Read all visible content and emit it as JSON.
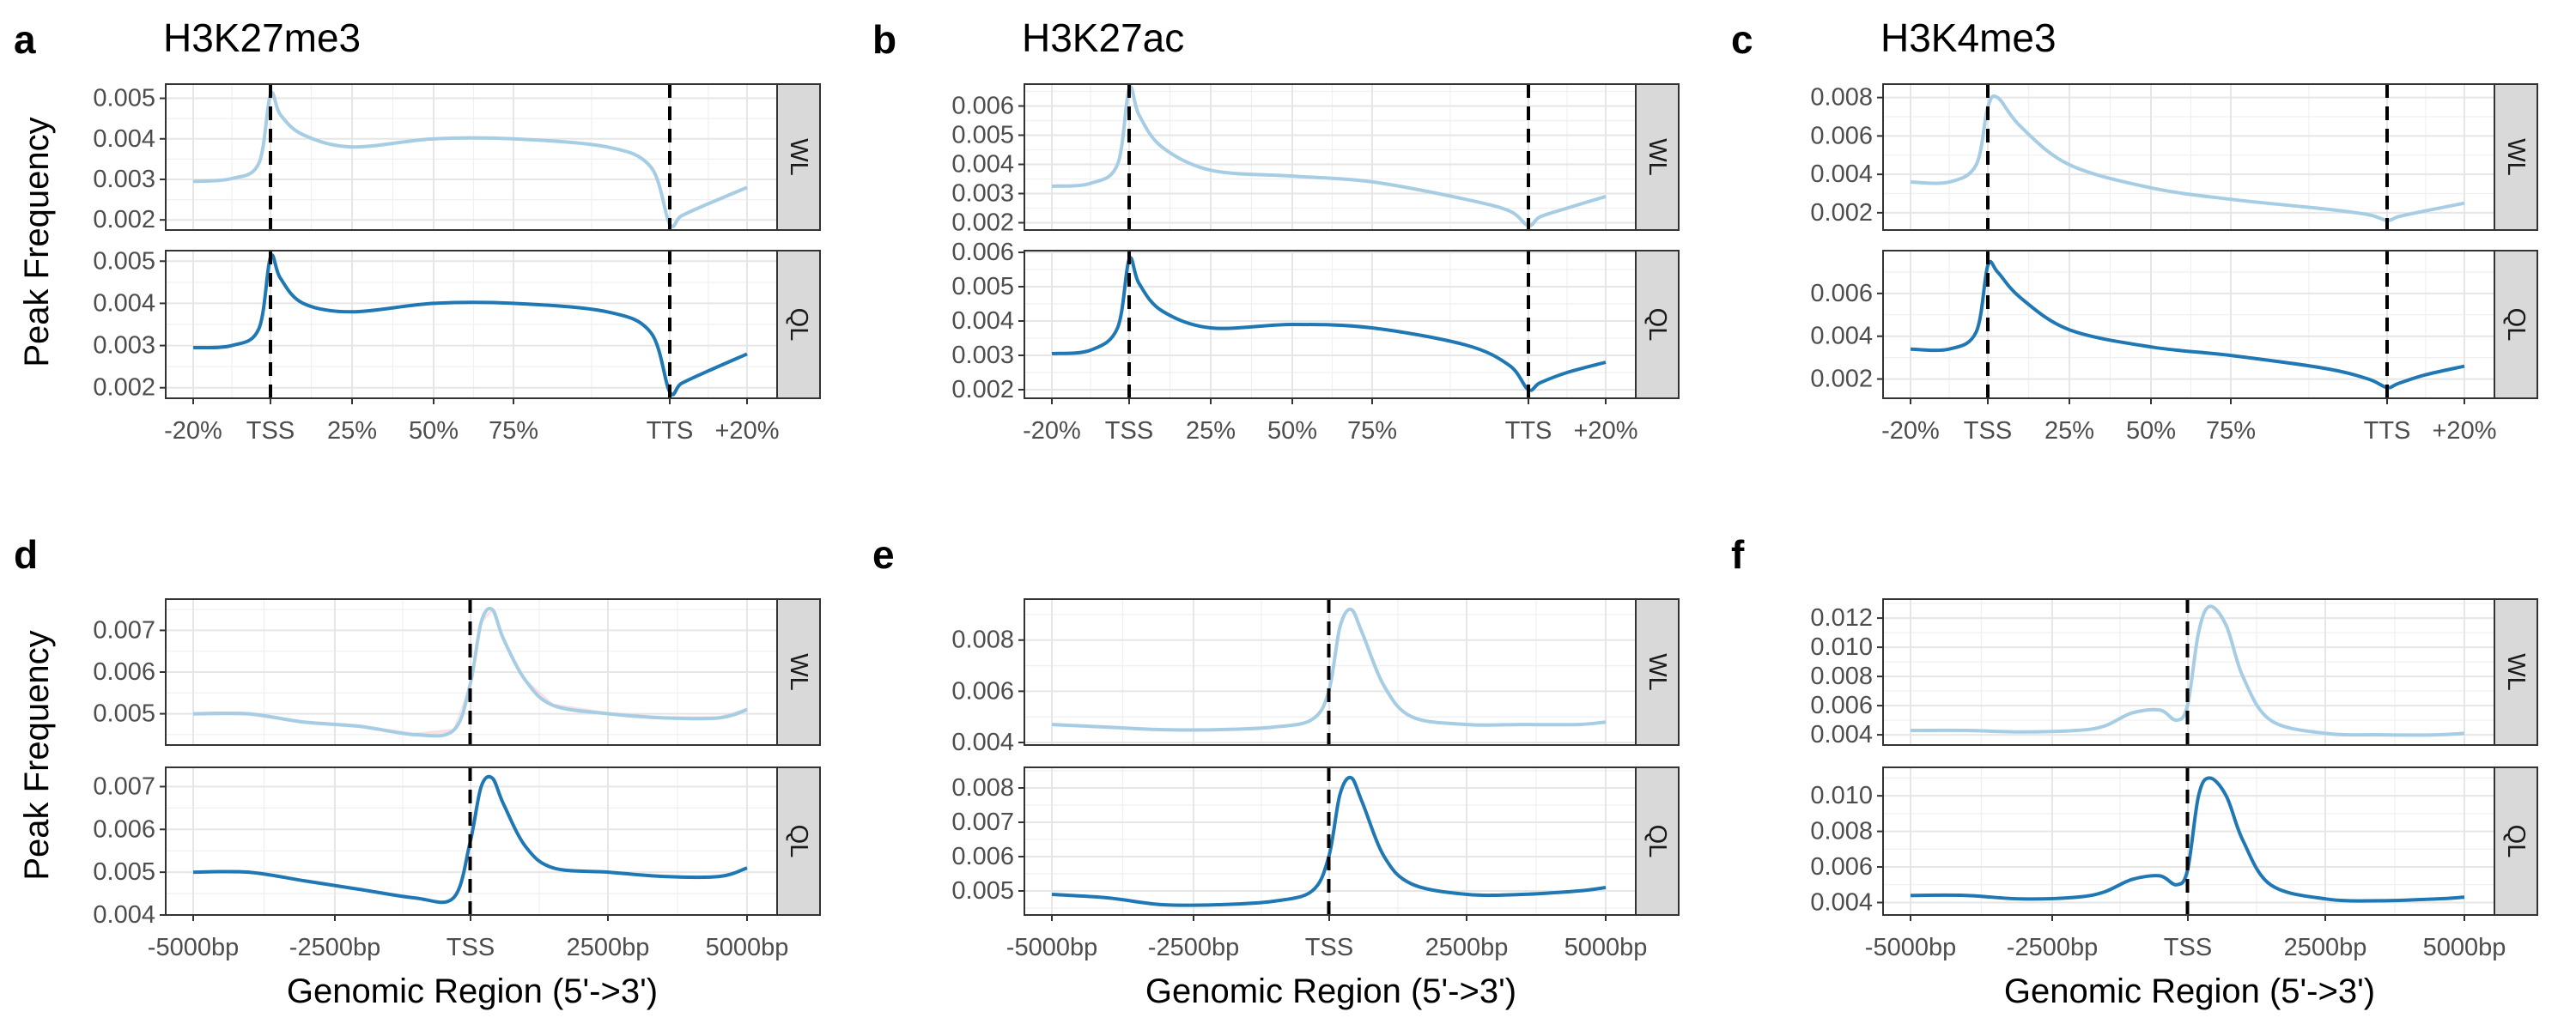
{
  "figure": {
    "panels_row1": [
      "a",
      "b",
      "c"
    ],
    "panels_row2": [
      "d",
      "e",
      "f"
    ],
    "titles_row1": [
      "H3K27me3",
      "H3K27ac",
      "H3K4me3"
    ],
    "ylabel": "Peak Frequency",
    "xlabel_row2": "Genomic Region (5'->3')"
  },
  "colors": {
    "WL": "#a6cde3",
    "QL": "#1f78b4",
    "ribbon": "#f4c6cc"
  },
  "chart_data": [
    {
      "panel": "a",
      "title": "H3K27me3",
      "type": "line",
      "x_ticks": [
        "-20%",
        "TSS",
        "25%",
        "50%",
        "75%",
        "TTS",
        "+20%"
      ],
      "vlines": [
        "TSS",
        "TTS"
      ],
      "facets": [
        {
          "label": "WL",
          "y_ticks": [
            "0.002",
            "0.003",
            "0.004",
            "0.005"
          ],
          "ylim": [
            0.00175,
            0.00535
          ],
          "x": [
            -20,
            -10,
            -3,
            0,
            3,
            10,
            25,
            50,
            75,
            90,
            97,
            100,
            103,
            110,
            120
          ],
          "y": [
            0.00295,
            0.00302,
            0.0034,
            0.0051,
            0.0046,
            0.0041,
            0.0038,
            0.004,
            0.004,
            0.0038,
            0.0033,
            0.0019,
            0.0021,
            0.0024,
            0.0028
          ]
        },
        {
          "label": "QL",
          "y_ticks": [
            "0.002",
            "0.003",
            "0.004",
            "0.005"
          ],
          "ylim": [
            0.00175,
            0.00525
          ],
          "x": [
            -20,
            -10,
            -3,
            0,
            3,
            10,
            25,
            50,
            75,
            90,
            97,
            100,
            103,
            110,
            120
          ],
          "y": [
            0.00295,
            0.003,
            0.0034,
            0.0051,
            0.0046,
            0.004,
            0.0038,
            0.004,
            0.004,
            0.0038,
            0.0033,
            0.0019,
            0.0021,
            0.0024,
            0.0028
          ]
        }
      ]
    },
    {
      "panel": "b",
      "title": "H3K27ac",
      "type": "line",
      "x_ticks": [
        "-20%",
        "TSS",
        "25%",
        "50%",
        "75%",
        "TTS",
        "+20%"
      ],
      "vlines": [
        "TSS",
        "TTS"
      ],
      "facets": [
        {
          "label": "WL",
          "y_ticks": [
            "0.002",
            "0.003",
            "0.004",
            "0.005",
            "0.006"
          ],
          "ylim": [
            0.00175,
            0.00675
          ],
          "x": [
            -20,
            -10,
            -3,
            0,
            3,
            10,
            25,
            50,
            75,
            90,
            97,
            100,
            103,
            110,
            120
          ],
          "y": [
            0.00325,
            0.00335,
            0.004,
            0.0066,
            0.0057,
            0.0046,
            0.0038,
            0.0036,
            0.0034,
            0.0028,
            0.0024,
            0.0019,
            0.0022,
            0.0025,
            0.0029
          ]
        },
        {
          "label": "QL",
          "y_ticks": [
            "0.002",
            "0.003",
            "0.004",
            "0.005",
            "0.006"
          ],
          "ylim": [
            0.00175,
            0.00605
          ],
          "x": [
            -20,
            -10,
            -3,
            0,
            3,
            10,
            25,
            50,
            75,
            90,
            97,
            100,
            103,
            110,
            120
          ],
          "y": [
            0.00305,
            0.00315,
            0.0038,
            0.0058,
            0.0051,
            0.0043,
            0.0038,
            0.0039,
            0.0038,
            0.0033,
            0.0027,
            0.002,
            0.0022,
            0.0025,
            0.0028
          ]
        }
      ]
    },
    {
      "panel": "c",
      "title": "H3K4me3",
      "type": "line",
      "x_ticks": [
        "-20%",
        "TSS",
        "25%",
        "50%",
        "75%",
        "TTS",
        "+20%"
      ],
      "vlines": [
        "TSS",
        "TTS"
      ],
      "facets": [
        {
          "label": "WL",
          "y_ticks": [
            "0.002",
            "0.004",
            "0.006",
            "0.008"
          ],
          "ylim": [
            0.0011,
            0.0087
          ],
          "x": [
            -20,
            -10,
            -3,
            0,
            3,
            10,
            25,
            50,
            75,
            90,
            97,
            100,
            103,
            110,
            120
          ],
          "y": [
            0.0036,
            0.0036,
            0.0045,
            0.0075,
            0.008,
            0.0065,
            0.0045,
            0.0033,
            0.0027,
            0.0022,
            0.0019,
            0.0016,
            0.0018,
            0.0021,
            0.0025
          ]
        },
        {
          "label": "QL",
          "y_ticks": [
            "0.002",
            "0.004",
            "0.006"
          ],
          "ylim": [
            0.0011,
            0.008
          ],
          "x": [
            -20,
            -10,
            -3,
            0,
            3,
            10,
            25,
            50,
            75,
            90,
            97,
            100,
            103,
            110,
            120
          ],
          "y": [
            0.0034,
            0.0034,
            0.0042,
            0.0073,
            0.007,
            0.0058,
            0.0043,
            0.0035,
            0.0031,
            0.0025,
            0.002,
            0.0016,
            0.0018,
            0.0022,
            0.0026
          ]
        }
      ]
    },
    {
      "panel": "d",
      "type": "line",
      "xlabel": "Genomic Region (5'->3')",
      "x_ticks": [
        "-5000bp",
        "-2500bp",
        "TSS",
        "2500bp",
        "5000bp"
      ],
      "vlines": [
        "TSS"
      ],
      "facets": [
        {
          "label": "WL",
          "y_ticks": [
            "0.005",
            "0.006",
            "0.007"
          ],
          "ylim": [
            0.00425,
            0.00775
          ],
          "ribbon": true,
          "x": [
            -5000,
            -4000,
            -3000,
            -2000,
            -1000,
            -300,
            0,
            200,
            400,
            600,
            1000,
            1500,
            2500,
            3500,
            4500,
            5000
          ],
          "y": [
            0.005,
            0.005,
            0.0048,
            0.0047,
            0.0045,
            0.0046,
            0.0057,
            0.0072,
            0.0075,
            0.0068,
            0.0058,
            0.0052,
            0.005,
            0.0049,
            0.0049,
            0.0051
          ]
        },
        {
          "label": "QL",
          "y_ticks": [
            "0.004",
            "0.005",
            "0.006",
            "0.007"
          ],
          "ylim": [
            0.004,
            0.00745
          ],
          "x": [
            -5000,
            -4000,
            -3000,
            -2000,
            -1000,
            -300,
            0,
            200,
            400,
            600,
            1000,
            1500,
            2500,
            3500,
            4500,
            5000
          ],
          "y": [
            0.005,
            0.005,
            0.0048,
            0.0046,
            0.0044,
            0.0044,
            0.0057,
            0.007,
            0.0072,
            0.0066,
            0.0056,
            0.0051,
            0.005,
            0.0049,
            0.0049,
            0.0051
          ]
        }
      ]
    },
    {
      "panel": "e",
      "type": "line",
      "xlabel": "Genomic Region (5'->3')",
      "x_ticks": [
        "-5000bp",
        "-2500bp",
        "TSS",
        "2500bp",
        "5000bp"
      ],
      "vlines": [
        "TSS"
      ],
      "facets": [
        {
          "label": "WL",
          "y_ticks": [
            "0.004",
            "0.006",
            "0.008"
          ],
          "ylim": [
            0.0039,
            0.0096
          ],
          "x": [
            -5000,
            -4000,
            -3000,
            -2000,
            -1000,
            -300,
            0,
            200,
            400,
            600,
            1000,
            1500,
            2500,
            3500,
            4500,
            5000
          ],
          "y": [
            0.0047,
            0.0046,
            0.0045,
            0.0045,
            0.0046,
            0.0049,
            0.006,
            0.0085,
            0.0092,
            0.0083,
            0.0062,
            0.005,
            0.0047,
            0.0047,
            0.0047,
            0.0048
          ]
        },
        {
          "label": "QL",
          "y_ticks": [
            "0.005",
            "0.006",
            "0.007",
            "0.008"
          ],
          "ylim": [
            0.0043,
            0.0086
          ],
          "x": [
            -5000,
            -4000,
            -3000,
            -2000,
            -1000,
            -300,
            0,
            200,
            400,
            600,
            1000,
            1500,
            2500,
            3500,
            4500,
            5000
          ],
          "y": [
            0.0049,
            0.0048,
            0.0046,
            0.0046,
            0.0047,
            0.005,
            0.006,
            0.0078,
            0.0083,
            0.0076,
            0.006,
            0.0052,
            0.0049,
            0.0049,
            0.005,
            0.0051
          ]
        }
      ]
    },
    {
      "panel": "f",
      "type": "line",
      "xlabel": "Genomic Region (5'->3')",
      "x_ticks": [
        "-5000bp",
        "-2500bp",
        "TSS",
        "2500bp",
        "5000bp"
      ],
      "vlines": [
        "TSS"
      ],
      "facets": [
        {
          "label": "WL",
          "y_ticks": [
            "0.004",
            "0.006",
            "0.008",
            "0.010",
            "0.012"
          ],
          "ylim": [
            0.0033,
            0.0133
          ],
          "x": [
            -5000,
            -4000,
            -3000,
            -2000,
            -1500,
            -1000,
            -500,
            -200,
            0,
            200,
            400,
            700,
            1000,
            1500,
            2500,
            3500,
            4500,
            5000
          ],
          "y": [
            0.0043,
            0.0043,
            0.0042,
            0.0043,
            0.0046,
            0.0055,
            0.0057,
            0.005,
            0.006,
            0.011,
            0.0128,
            0.0115,
            0.008,
            0.005,
            0.0041,
            0.004,
            0.004,
            0.0041
          ]
        },
        {
          "label": "QL",
          "y_ticks": [
            "0.004",
            "0.006",
            "0.008",
            "0.010"
          ],
          "ylim": [
            0.0033,
            0.0116
          ],
          "x": [
            -5000,
            -4000,
            -3000,
            -2000,
            -1500,
            -1000,
            -500,
            -200,
            0,
            200,
            400,
            700,
            1000,
            1500,
            2500,
            3500,
            4500,
            5000
          ],
          "y": [
            0.0044,
            0.0044,
            0.0042,
            0.0043,
            0.0046,
            0.0053,
            0.0055,
            0.005,
            0.0058,
            0.01,
            0.011,
            0.01,
            0.0075,
            0.005,
            0.0042,
            0.0041,
            0.0042,
            0.0043
          ]
        }
      ]
    }
  ]
}
